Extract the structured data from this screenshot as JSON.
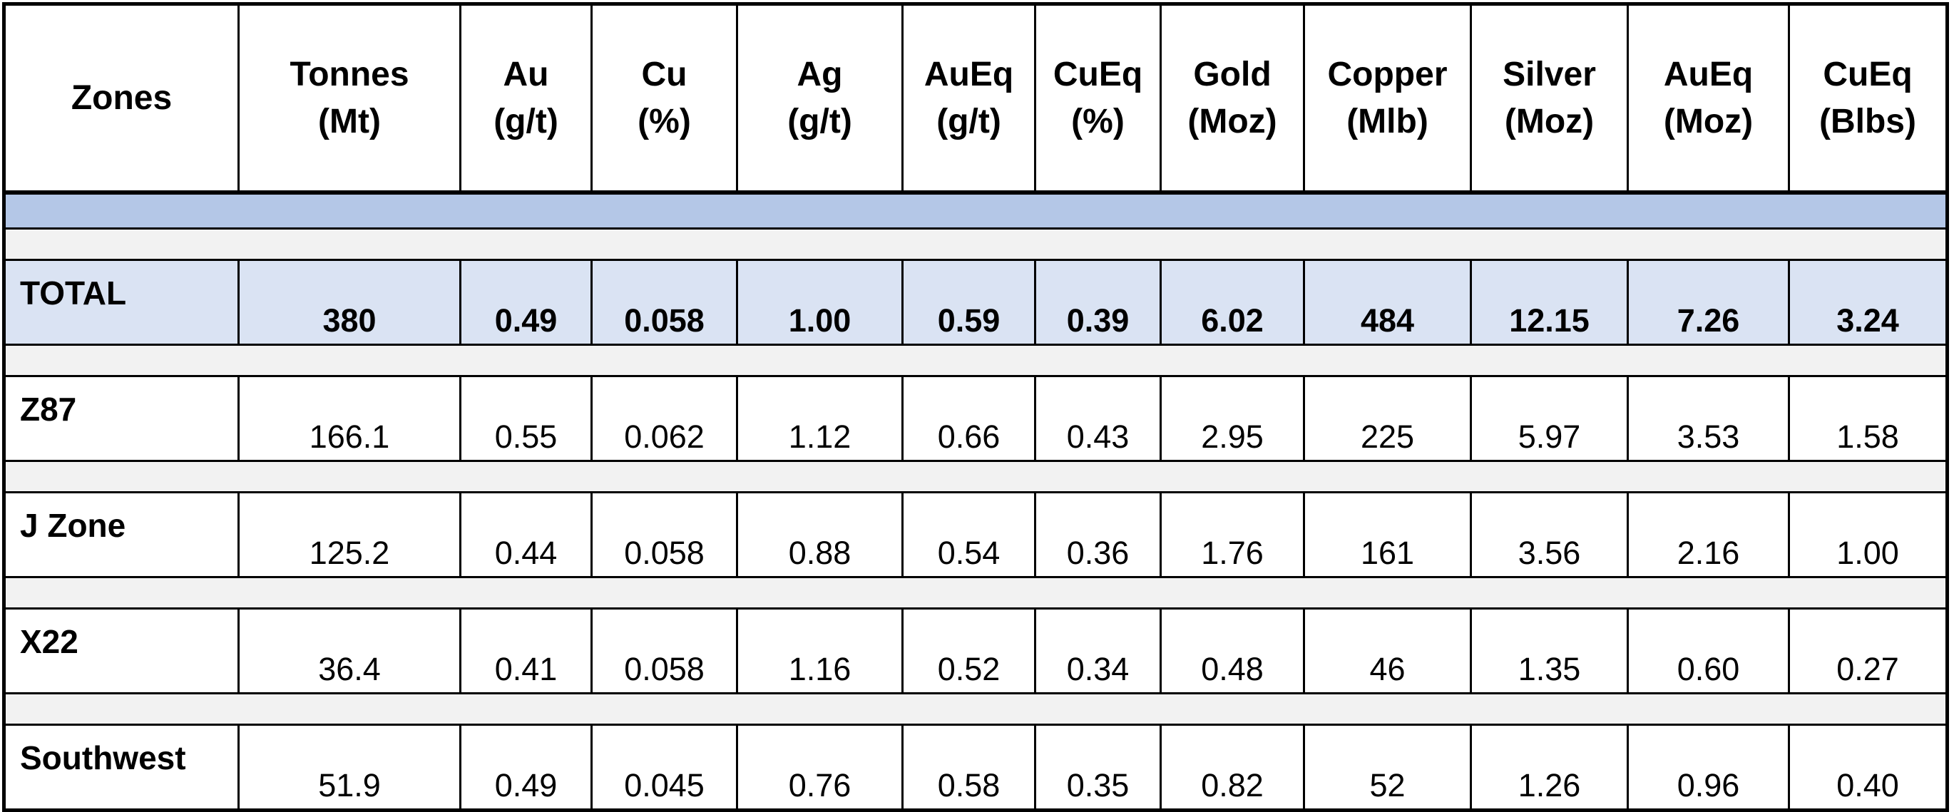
{
  "table": {
    "header": [
      [
        "Zones"
      ],
      [
        "Tonnes",
        "(Mt)"
      ],
      [
        "Au",
        "(g/t)"
      ],
      [
        "Cu",
        "(%)"
      ],
      [
        "Ag",
        "(g/t)"
      ],
      [
        "AuEq",
        "(g/t)"
      ],
      [
        "CuEq",
        "(%)"
      ],
      [
        "Gold",
        "(Moz)"
      ],
      [
        "Copper",
        "(Mlb)"
      ],
      [
        "Silver",
        "(Moz)"
      ],
      [
        "AuEq",
        "(Moz)"
      ],
      [
        "CuEq",
        "(Blbs)"
      ]
    ],
    "rows": [
      [
        "TOTAL",
        "380",
        "0.49",
        "0.058",
        "1.00",
        "0.59",
        "0.39",
        "6.02",
        "484",
        "12.15",
        "7.26",
        "3.24"
      ],
      [
        "Z87",
        "166.1",
        "0.55",
        "0.062",
        "1.12",
        "0.66",
        "0.43",
        "2.95",
        "225",
        "5.97",
        "3.53",
        "1.58"
      ],
      [
        "J Zone",
        "125.2",
        "0.44",
        "0.058",
        "0.88",
        "0.54",
        "0.36",
        "1.76",
        "161",
        "3.56",
        "2.16",
        "1.00"
      ],
      [
        "X22",
        "36.4",
        "0.41",
        "0.058",
        "1.16",
        "0.52",
        "0.34",
        "0.48",
        "46",
        "1.35",
        "0.60",
        "0.27"
      ],
      [
        "Southwest",
        "51.9",
        "0.49",
        "0.045",
        "0.76",
        "0.58",
        "0.35",
        "0.82",
        "52",
        "1.26",
        "0.96",
        "0.40"
      ]
    ]
  }
}
